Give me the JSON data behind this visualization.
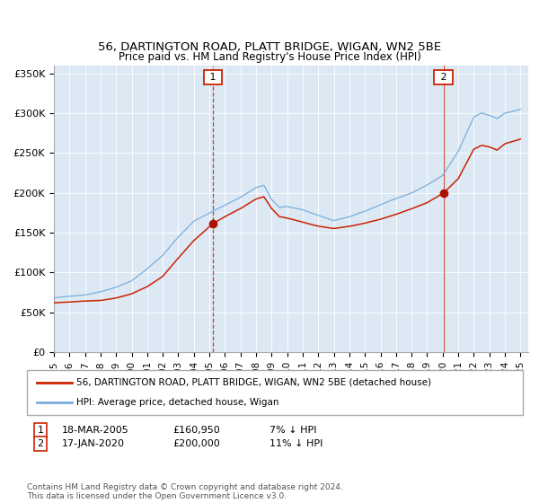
{
  "title": "56, DARTINGTON ROAD, PLATT BRIDGE, WIGAN, WN2 5BE",
  "subtitle": "Price paid vs. HM Land Registry's House Price Index (HPI)",
  "bg_color": "#dce9f5",
  "hpi_color": "#7aadda",
  "property_color": "#cc2200",
  "marker_color": "#aa1100",
  "vline1_color": "#cc2200",
  "vline2_color": "#cc2200",
  "sale1_date": 2005.21,
  "sale1_price": 160950,
  "sale2_date": 2020.05,
  "sale2_price": 200000,
  "ylim_min": 0,
  "ylim_max": 360000,
  "xlim_min": 1995.0,
  "xlim_max": 2025.5,
  "yticks": [
    0,
    50000,
    100000,
    150000,
    200000,
    250000,
    300000,
    350000
  ],
  "ytick_labels": [
    "£0",
    "£50K",
    "£100K",
    "£150K",
    "£200K",
    "£250K",
    "£300K",
    "£350K"
  ],
  "xticks": [
    1995,
    1996,
    1997,
    1998,
    1999,
    2000,
    2001,
    2002,
    2003,
    2004,
    2005,
    2006,
    2007,
    2008,
    2009,
    2010,
    2011,
    2012,
    2013,
    2014,
    2015,
    2016,
    2017,
    2018,
    2019,
    2020,
    2021,
    2022,
    2023,
    2024,
    2025
  ],
  "legend_label1": "56, DARTINGTON ROAD, PLATT BRIDGE, WIGAN, WN2 5BE (detached house)",
  "legend_label2": "HPI: Average price, detached house, Wigan",
  "ann1_info": "18-MAR-2005     £160,950     7% ↓ HPI",
  "ann2_info": "17-JAN-2020     £200,000     11% ↓ HPI",
  "footnote": "Contains HM Land Registry data © Crown copyright and database right 2024.\nThis data is licensed under the Open Government Licence v3.0."
}
